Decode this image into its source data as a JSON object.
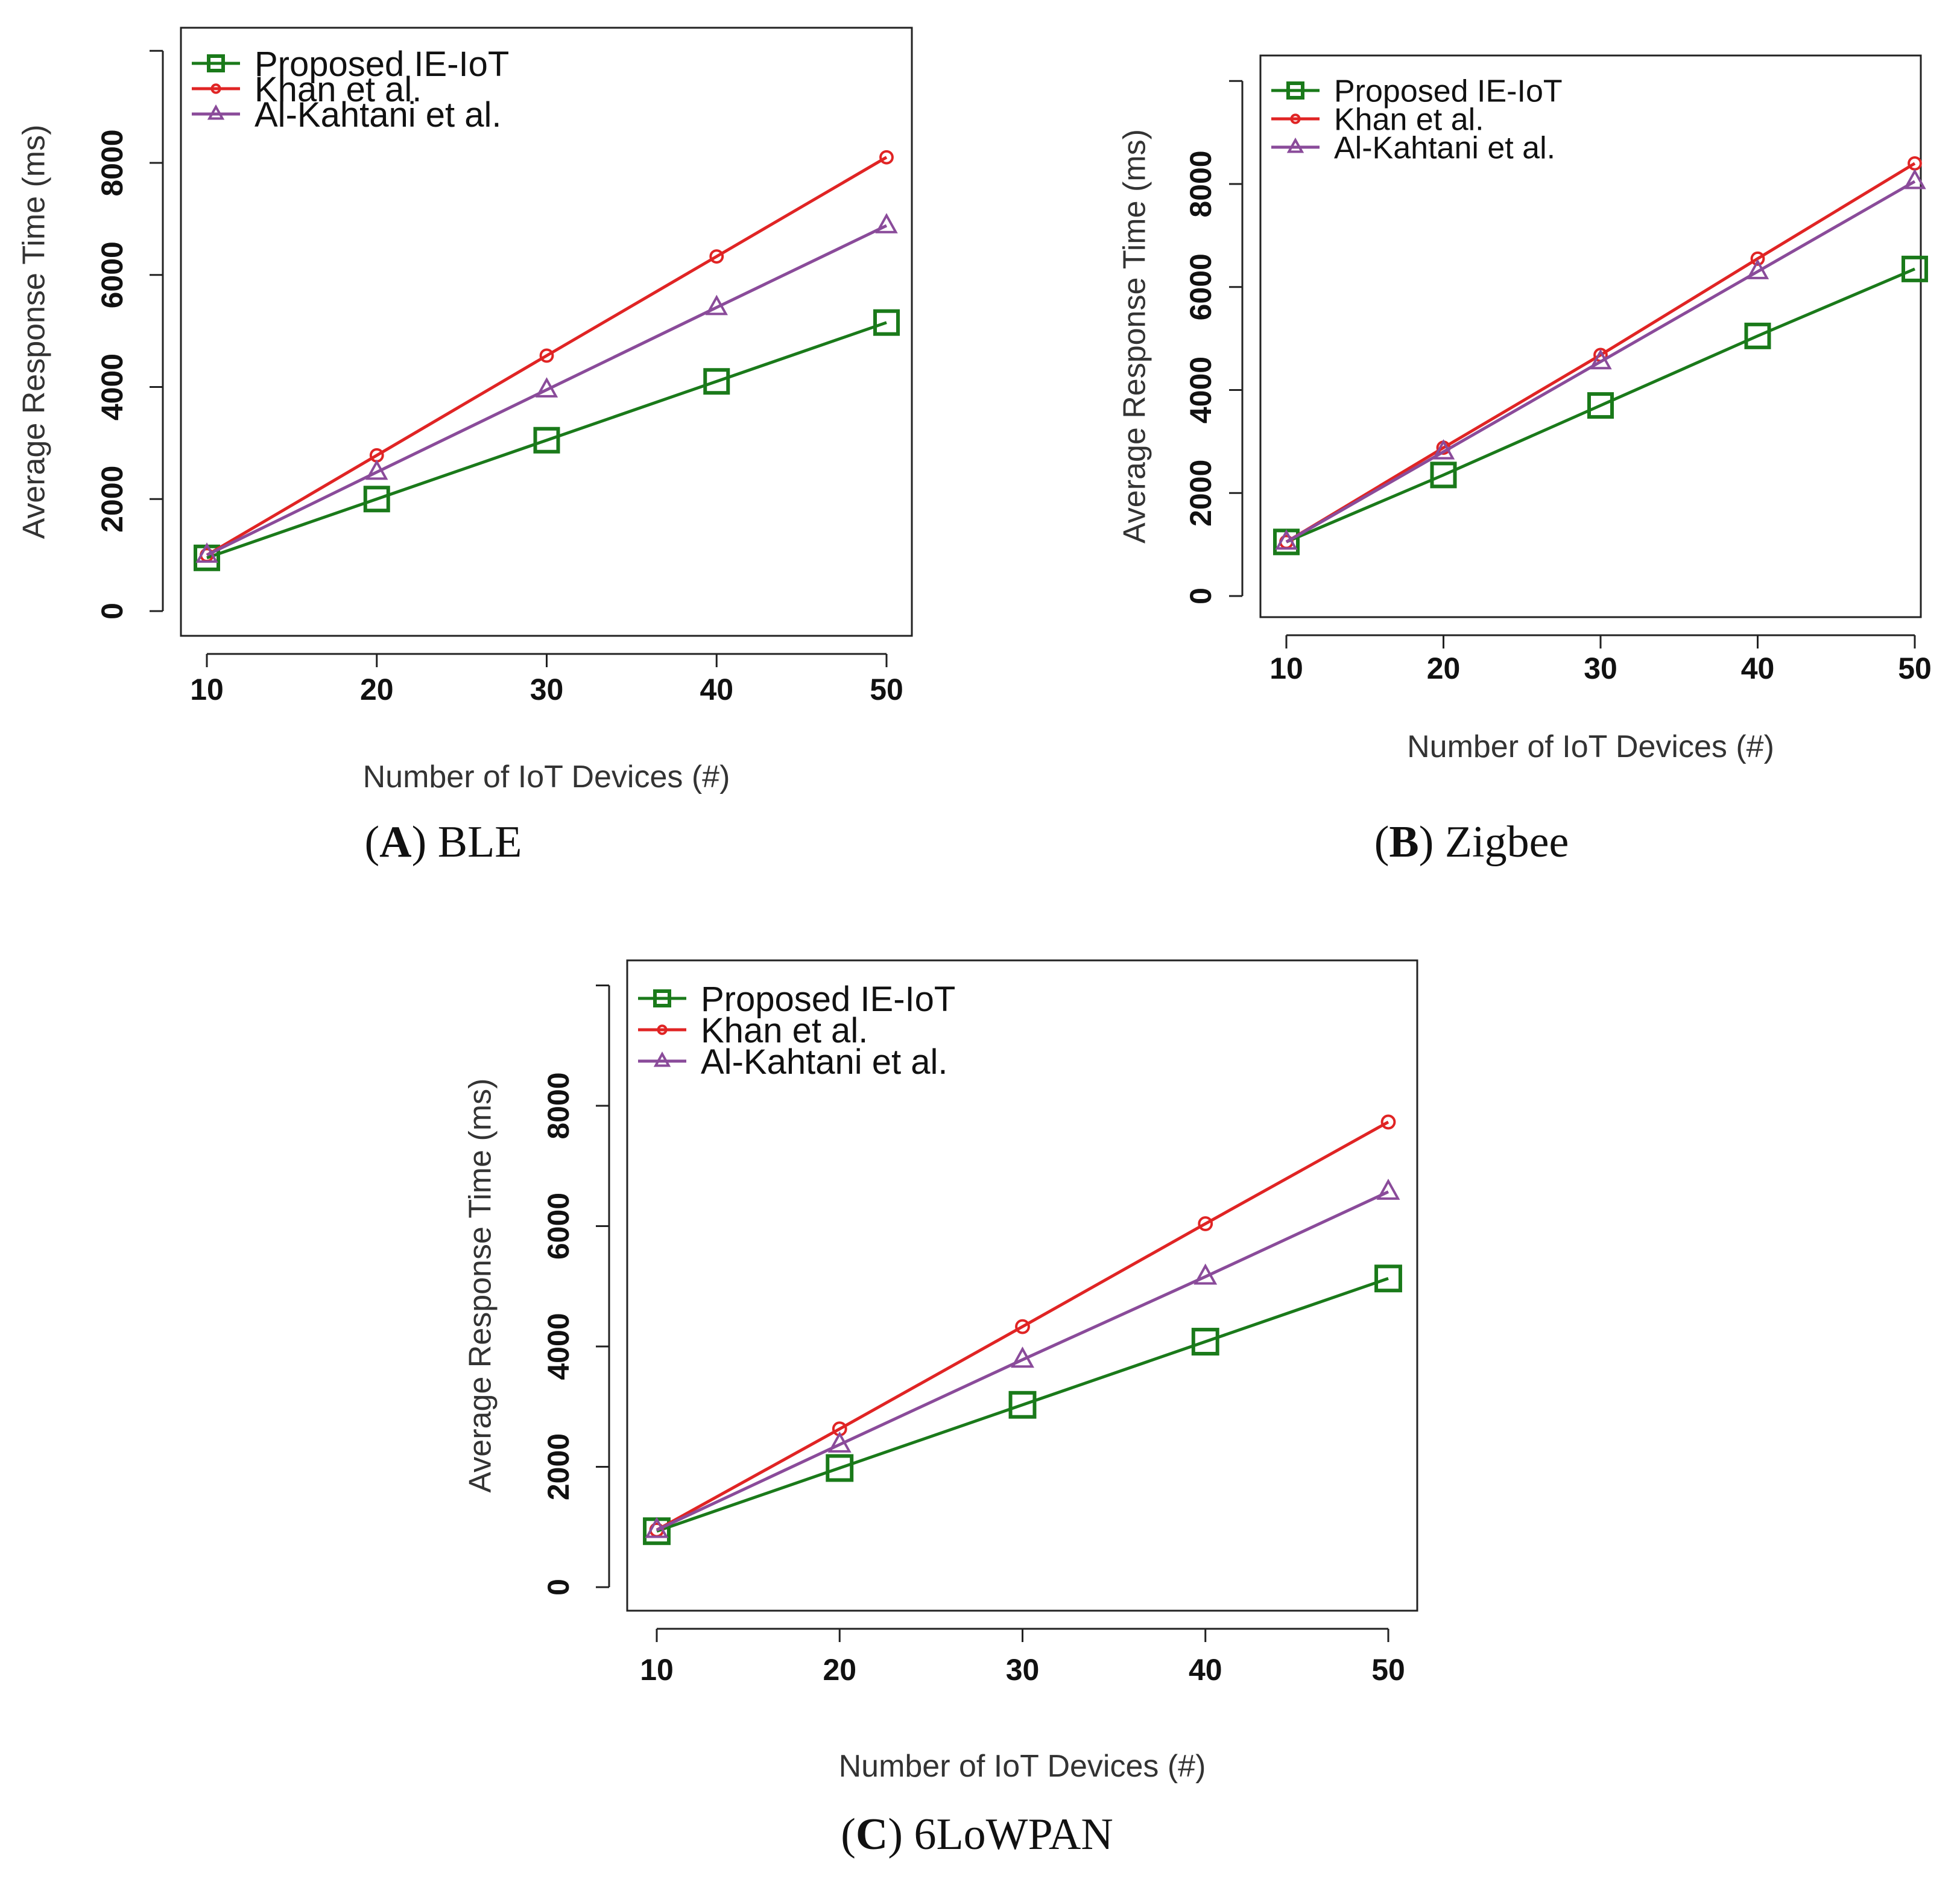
{
  "chart_data": [
    {
      "type": "line",
      "panel": "A",
      "caption_letter": "A",
      "caption_text": "BLE",
      "xlabel": "Number of IoT Devices (#)",
      "ylabel": "Average Response Time (ms)",
      "x": [
        10,
        20,
        30,
        40,
        50
      ],
      "x_ticks": [
        "10",
        "20",
        "30",
        "40",
        "50"
      ],
      "y_ticks": [
        "0",
        "2000",
        "4000",
        "6000",
        "8000"
      ],
      "ylim": [
        0,
        10000
      ],
      "legend_position": "top-left",
      "series": [
        {
          "name": "Proposed IE-IoT",
          "marker": "square",
          "color": "#1a7a1a",
          "values": [
            950,
            2000,
            3050,
            4100,
            5150
          ]
        },
        {
          "name": "Khan et al.",
          "marker": "circle",
          "color": "#e02424",
          "values": [
            1000,
            2780,
            4560,
            6330,
            8100
          ]
        },
        {
          "name": "Al-Kahtani et al.",
          "marker": "triangle",
          "color": "#8a4b9a",
          "values": [
            1000,
            2480,
            3950,
            5420,
            6880
          ]
        }
      ]
    },
    {
      "type": "line",
      "panel": "B",
      "caption_letter": "B",
      "caption_text": "Zigbee",
      "xlabel": "Number of IoT Devices (#)",
      "ylabel": "Average Response Time (ms)",
      "x": [
        10,
        20,
        30,
        40,
        50
      ],
      "x_ticks": [
        "10",
        "20",
        "30",
        "40",
        "50"
      ],
      "y_ticks": [
        "0",
        "2000",
        "4000",
        "6000",
        "8000"
      ],
      "ylim": [
        0,
        10000
      ],
      "legend_position": "top-left",
      "series": [
        {
          "name": "Proposed IE-IoT",
          "marker": "square",
          "color": "#1a7a1a",
          "values": [
            1050,
            2350,
            3700,
            5050,
            6350
          ]
        },
        {
          "name": "Khan et al.",
          "marker": "circle",
          "color": "#e02424",
          "values": [
            1050,
            2880,
            4680,
            6550,
            8400
          ]
        },
        {
          "name": "Al-Kahtani et al.",
          "marker": "triangle",
          "color": "#8a4b9a",
          "values": [
            1050,
            2800,
            4550,
            6300,
            8050
          ]
        }
      ]
    },
    {
      "type": "line",
      "panel": "C",
      "caption_letter": "C",
      "caption_text": "6LoWPAN",
      "xlabel": "Number of IoT Devices (#)",
      "ylabel": "Average Response Time (ms)",
      "x": [
        10,
        20,
        30,
        40,
        50
      ],
      "x_ticks": [
        "10",
        "20",
        "30",
        "40",
        "50"
      ],
      "y_ticks": [
        "0",
        "2000",
        "4000",
        "6000",
        "8000"
      ],
      "ylim": [
        0,
        10000
      ],
      "legend_position": "top-left",
      "series": [
        {
          "name": "Proposed IE-IoT",
          "marker": "square",
          "color": "#1a7a1a",
          "values": [
            930,
            1980,
            3030,
            4080,
            5130
          ]
        },
        {
          "name": "Khan et al.",
          "marker": "circle",
          "color": "#e02424",
          "values": [
            950,
            2630,
            4330,
            6040,
            7730
          ]
        },
        {
          "name": "Al-Kahtani et al.",
          "marker": "triangle",
          "color": "#8a4b9a",
          "values": [
            950,
            2370,
            3780,
            5160,
            6570
          ]
        }
      ]
    }
  ]
}
